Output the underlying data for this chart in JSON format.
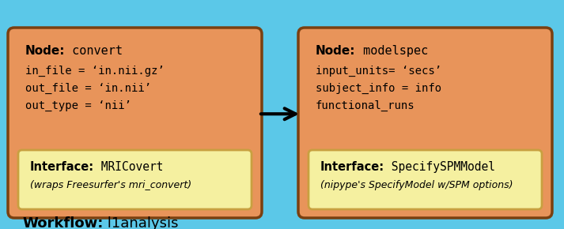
{
  "bg_color": "#5BC8E8",
  "node_box_color": "#E8945A",
  "interface_box_color": "#F5F0A0",
  "node_box_edge_color": "#7A4010",
  "interface_box_edge_color": "#C8A040",
  "outer_bg_edge_color": "#3090B0",
  "workflow_label_bold": "Workflow:",
  "workflow_label_plain": " l1analysis",
  "node1_title_bold": "Node:",
  "node1_title_plain": " convert",
  "node1_lines": [
    "in_file = ‘in.nii.gz’",
    "out_file = ‘in.nii’",
    "out_type = ‘nii’"
  ],
  "interface1_bold": "Interface:",
  "interface1_plain": " MRICovert",
  "interface1_sub": "(wraps Freesurfer's mri_convert)",
  "node2_title_bold": "Node:",
  "node2_title_plain": " modelspec",
  "node2_lines": [
    "input_units= ‘secs’",
    "subject_info = info",
    "functional_runs"
  ],
  "interface2_bold": "Interface:",
  "interface2_plain": " SpecifySPMModel",
  "interface2_sub": "(nipype's SpecifyModel w/SPM options)",
  "dots": "...",
  "font_mono": "monospace",
  "font_sans": "DejaVu Sans"
}
